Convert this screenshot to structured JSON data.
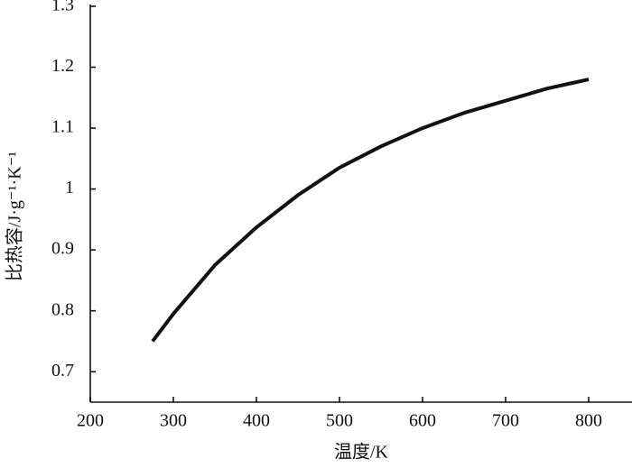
{
  "chart_data": {
    "type": "line",
    "x_label": "温度/K",
    "y_label": "比热容/J·g⁻¹·K⁻¹",
    "x": [
      275,
      300,
      350,
      400,
      450,
      500,
      550,
      600,
      650,
      700,
      750,
      800
    ],
    "series": [
      {
        "color": "#111111",
        "values": [
          0.75,
          0.795,
          0.875,
          0.937,
          0.99,
          1.035,
          1.07,
          1.1,
          1.125,
          1.145,
          1.165,
          1.18
        ]
      }
    ],
    "xlim": [
      200,
      850
    ],
    "xticks": [
      200,
      300,
      400,
      500,
      600,
      700,
      800
    ],
    "ylim": [
      0.65,
      1.3
    ],
    "yticks": [
      0.7,
      0.8,
      0.9,
      1.0,
      1.1,
      1.2,
      1.3
    ],
    "grid": false
  }
}
